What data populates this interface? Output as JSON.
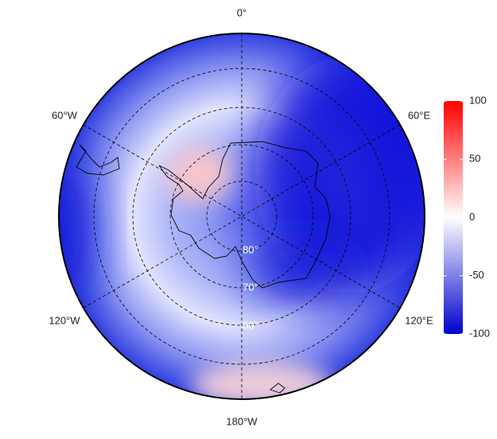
{
  "map": {
    "meridian_labels": [
      "0°",
      "60°E",
      "120°E",
      "180°W",
      "120°W",
      "60°W"
    ],
    "parallel_labels": [
      "80°",
      "70°",
      "60°"
    ]
  },
  "colorbar": {
    "lim": [
      -100,
      100
    ],
    "ticks": [
      100,
      50,
      0,
      -50,
      -100
    ],
    "colors": [
      "#0000cc",
      "#ffffff",
      "#ff0000"
    ]
  }
}
